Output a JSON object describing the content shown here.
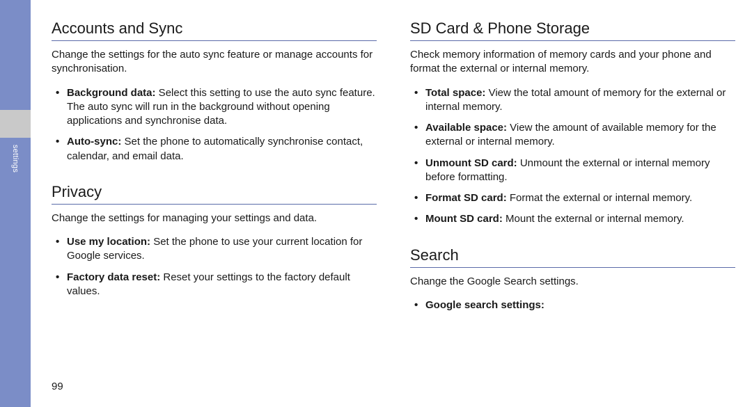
{
  "sidebar": {
    "label": "settings"
  },
  "page_number": "99",
  "left": {
    "section1": {
      "title": "Accounts and Sync",
      "desc": "Change the settings for the auto sync feature or manage accounts for synchronisation.",
      "items": [
        {
          "label": "Background data:",
          "text": " Select this setting to use the auto sync feature. The auto sync will run in the background without opening applications and synchronise data."
        },
        {
          "label": "Auto-sync:",
          "text": " Set the phone to automatically synchronise contact, calendar, and email data."
        }
      ]
    },
    "section2": {
      "title": "Privacy",
      "desc": "Change the settings for managing your settings and data.",
      "items": [
        {
          "label": "Use my location:",
          "text": " Set the phone to use your current location for Google services."
        },
        {
          "label": "Factory data reset:",
          "text": " Reset your settings to the factory default values."
        }
      ]
    }
  },
  "right": {
    "section1": {
      "title": "SD Card & Phone Storage",
      "desc": "Check memory information of memory cards and your phone and format the external or internal memory.",
      "items": [
        {
          "label": "Total space:",
          "text": " View the total amount of memory for the external or internal memory."
        },
        {
          "label": "Available space:",
          "text": " View the amount of available memory for the external or internal memory."
        },
        {
          "label": "Unmount SD card:",
          "text": " Unmount the external or internal memory before formatting."
        },
        {
          "label": "Format SD card:",
          "text": " Format the external or internal memory."
        },
        {
          "label": "Mount SD card:",
          "text": " Mount the external or internal memory."
        }
      ]
    },
    "section2": {
      "title": "Search",
      "desc": "Change the Google Search settings.",
      "items": [
        {
          "label": "Google search settings:",
          "text": ""
        }
      ]
    }
  },
  "colors": {
    "band_blue": "#7b8dc7",
    "band_gray": "#c9c9c9",
    "rule": "#5a6aa8",
    "text": "#1a1a1a"
  }
}
